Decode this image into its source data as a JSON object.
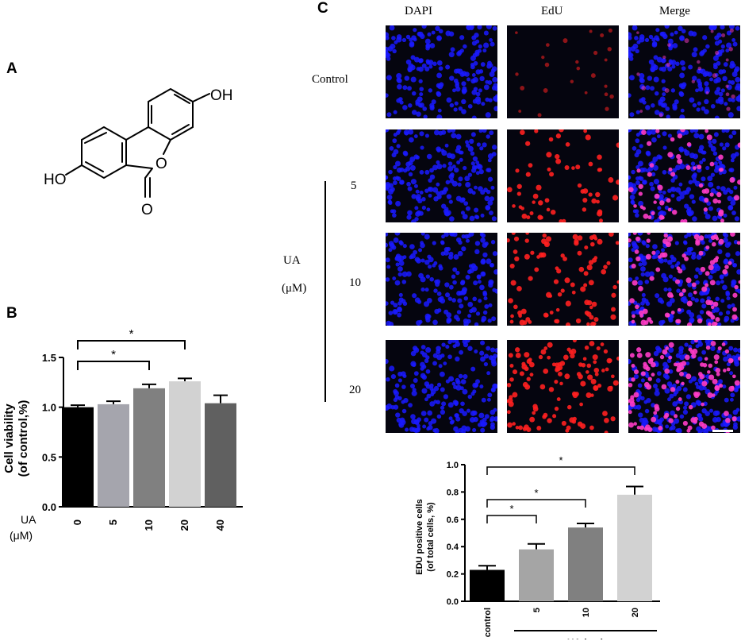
{
  "panels": {
    "a": {
      "letter": "A",
      "substituent_top": "OH",
      "substituent_left": "HO",
      "carbonyl_o": "O",
      "ring_o": "O"
    },
    "b": {
      "letter": "B"
    },
    "c": {
      "letter": "C",
      "column_headers": [
        "DAPI",
        "EdU",
        "Merge"
      ],
      "row_labels": [
        "Control",
        "5",
        "10",
        "20"
      ],
      "group_label_line1": "UA",
      "group_label_line2": "(μM)"
    }
  },
  "colors": {
    "dapi": "#1a1aff",
    "edu": "#ff2020",
    "merge_pink": "#ff3cc8",
    "tile_background": "#05050f"
  },
  "chart_data": [
    {
      "id": "panel-b",
      "type": "bar",
      "categories": [
        "0",
        "5",
        "10",
        "20",
        "40"
      ],
      "values": [
        1.0,
        1.03,
        1.19,
        1.26,
        1.04
      ],
      "errors": [
        0.02,
        0.03,
        0.04,
        0.03,
        0.08
      ],
      "bar_colors": [
        "#000000",
        "#a5a5ad",
        "#808080",
        "#d2d2d2",
        "#606060"
      ],
      "ylabel_line1": "Cell viability",
      "ylabel_line2": "(of control,%)",
      "xlabel_line1": "UA",
      "xlabel_line2": "(μM)",
      "ylim": [
        0,
        1.5
      ],
      "yticks": [
        "0.0",
        "0.5",
        "1.0",
        "1.5"
      ],
      "grid": false,
      "significance": [
        {
          "from": "0",
          "to": "10",
          "label": "*"
        },
        {
          "from": "0",
          "to": "20",
          "label": "*"
        }
      ]
    },
    {
      "id": "panel-c",
      "type": "bar",
      "categories": [
        "control",
        "5",
        "10",
        "20"
      ],
      "values": [
        0.23,
        0.38,
        0.54,
        0.78
      ],
      "errors": [
        0.03,
        0.04,
        0.03,
        0.06
      ],
      "bar_colors": [
        "#000000",
        "#a5a5a5",
        "#808080",
        "#d2d2d2"
      ],
      "ylabel_line1": "EDU positive cells",
      "ylabel_line2": "(of total cells, %)",
      "xlabel": "UA (μm)",
      "ylim": [
        0,
        1.0
      ],
      "yticks": [
        "0.0",
        "0.2",
        "0.4",
        "0.6",
        "0.8",
        "1.0"
      ],
      "grid": false,
      "significance": [
        {
          "from": "control",
          "to": "5",
          "label": "*"
        },
        {
          "from": "control",
          "to": "10",
          "label": "*"
        },
        {
          "from": "control",
          "to": "20",
          "label": "*"
        }
      ]
    }
  ]
}
